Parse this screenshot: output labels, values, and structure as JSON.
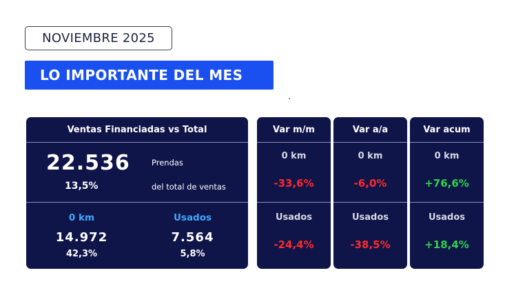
{
  "header": {
    "date": "NOVIEMBRE 2025",
    "title": "LO IMPORTANTE DEL MES"
  },
  "main_panel": {
    "title": "Ventas Financiadas vs Total",
    "total_value": "22.536",
    "total_unit": "Prendas",
    "total_pct": "13,5%",
    "total_pct_label": "del total de ventas",
    "zero_km": {
      "label": "0 km",
      "value": "14.972",
      "pct": "42,3%"
    },
    "usados": {
      "label": "Usados",
      "value": "7.564",
      "pct": "5,8%"
    }
  },
  "variations": [
    {
      "title": "Var m/m",
      "zero_km_label": "0 km",
      "zero_km_value": "-33,6%",
      "usados_label": "Usados",
      "usados_value": "-24,4%"
    },
    {
      "title": "Var a/a",
      "zero_km_label": "0 km",
      "zero_km_value": "-6,0%",
      "usados_label": "Usados",
      "usados_value": "-38,5%"
    },
    {
      "title": "Var acum",
      "zero_km_label": "0 km",
      "zero_km_value": "+76,6%",
      "usados_label": "Usados",
      "usados_value": "+18,4%"
    }
  ],
  "colors": {
    "accent_blue": "#1a4ff0",
    "panel_navy": "#0f1449",
    "negative": "#ff2a2a",
    "positive": "#2fd44a",
    "category_blue": "#3fa9ff"
  }
}
